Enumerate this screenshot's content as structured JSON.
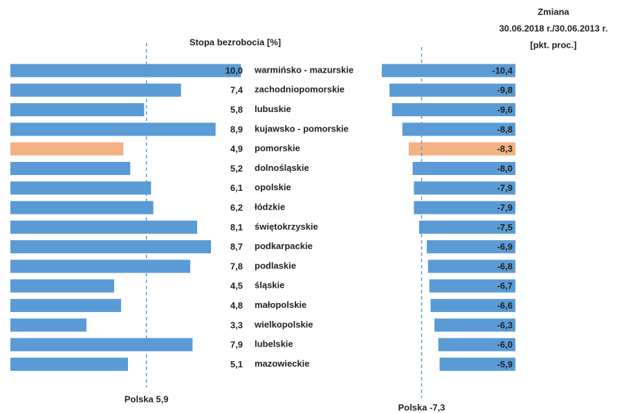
{
  "chart_data": [
    {
      "type": "bar",
      "orientation": "horizontal",
      "title": "Stopa bezrobocia [%]",
      "categories": [
        "warmińsko - mazurskie",
        "zachodniopomorskie",
        "lubuskie",
        "kujawsko - pomorskie",
        "pomorskie",
        "dolnośląskie",
        "opolskie",
        "łódzkie",
        "świętokrzyskie",
        "podkarpackie",
        "podlaskie",
        "śląskie",
        "małopolskie",
        "wielkopolskie",
        "lubelskie",
        "mazowieckie"
      ],
      "values": [
        10.0,
        7.4,
        5.8,
        8.9,
        4.9,
        5.2,
        6.1,
        6.2,
        8.1,
        8.7,
        7.8,
        4.5,
        4.8,
        3.3,
        7.9,
        5.1
      ],
      "value_labels": [
        "10,0",
        "7,4",
        "5,8",
        "8,9",
        "4,9",
        "5,2",
        "6,1",
        "6,2",
        "8,1",
        "8,7",
        "7,8",
        "4,5",
        "4,8",
        "3,3",
        "7,9",
        "5,1"
      ],
      "colors": [
        "#5b9bd5",
        "#5b9bd5",
        "#5b9bd5",
        "#5b9bd5",
        "#f4b183",
        "#5b9bd5",
        "#5b9bd5",
        "#5b9bd5",
        "#5b9bd5",
        "#5b9bd5",
        "#5b9bd5",
        "#5b9bd5",
        "#5b9bd5",
        "#5b9bd5",
        "#5b9bd5",
        "#5b9bd5"
      ],
      "xlim": [
        0,
        10.2
      ],
      "reference_line": {
        "value": 5.9,
        "label": "Polska 5,9"
      }
    },
    {
      "type": "bar",
      "orientation": "horizontal",
      "title": [
        "Zmiana",
        "30.06.2018 r./30.06.2013 r.",
        "[pkt. proc.]"
      ],
      "values": [
        -10.4,
        -9.8,
        -9.6,
        -8.8,
        -8.3,
        -8.0,
        -7.9,
        -7.9,
        -7.5,
        -6.9,
        -6.8,
        -6.7,
        -6.6,
        -6.3,
        -6.0,
        -5.9
      ],
      "value_labels": [
        "-10,4",
        "-9,8",
        "-9,6",
        "-8,8",
        "-8,3",
        "-8,0",
        "-7,9",
        "-7,9",
        "-7,5",
        "-6,9",
        "-6,8",
        "-6,7",
        "-6,6",
        "-6,3",
        "-6,0",
        "-5,9"
      ],
      "colors": [
        "#5b9bd5",
        "#5b9bd5",
        "#5b9bd5",
        "#5b9bd5",
        "#f4b183",
        "#5b9bd5",
        "#5b9bd5",
        "#5b9bd5",
        "#5b9bd5",
        "#5b9bd5",
        "#5b9bd5",
        "#5b9bd5",
        "#5b9bd5",
        "#5b9bd5",
        "#5b9bd5",
        "#5b9bd5"
      ],
      "xlim": [
        -10.5,
        0
      ],
      "reference_line": {
        "value": -7.3,
        "label": "Polska -7,3"
      }
    }
  ]
}
